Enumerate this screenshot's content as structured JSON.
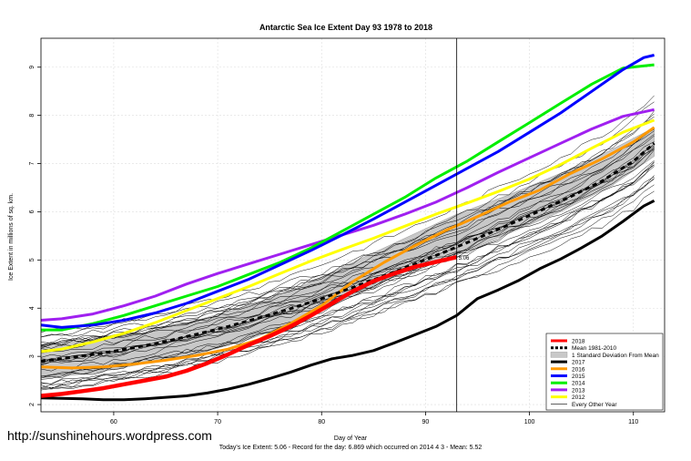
{
  "chart_data": {
    "type": "line",
    "title": "Antarctic Sea Ice Extent Day 93 1978 to 2018",
    "xlabel": "Day of Year",
    "ylabel": "Ice Extent in millions of sq. km.",
    "xlim": [
      53,
      113
    ],
    "ylim": [
      1.85,
      9.6
    ],
    "x_ticks": [
      60,
      70,
      80,
      90,
      100,
      110
    ],
    "y_ticks": [
      2,
      3,
      4,
      5,
      6,
      7,
      8,
      9
    ],
    "grid": true,
    "legend_position": "bottom-right",
    "current_day_marker": 93,
    "current_value_label": "5.06",
    "footnote": "Today's Ice Extent: 5.06  - Record for the day: 6.869 which occurred on 2014 4 3  - Mean: 5.52",
    "band": {
      "name": "1 Standard Deviation From Mean",
      "color": "#c8c8c8",
      "x": [
        53,
        58,
        63,
        68,
        73,
        78,
        83,
        88,
        93,
        98,
        103,
        108,
        112
      ],
      "upper": [
        3.25,
        3.35,
        3.5,
        3.75,
        4.05,
        4.45,
        4.95,
        5.45,
        5.95,
        6.35,
        6.8,
        7.3,
        7.75
      ],
      "lower": [
        2.55,
        2.65,
        2.85,
        3.05,
        3.35,
        3.75,
        4.25,
        4.75,
        5.1,
        5.55,
        6.0,
        6.55,
        7.15
      ]
    },
    "series": [
      {
        "name": "2018",
        "color": "#ff0000",
        "width": 4.5,
        "dash": "",
        "x": [
          53,
          55,
          57,
          59,
          61,
          63,
          65,
          67,
          69,
          71,
          73,
          75,
          77,
          79,
          81,
          83,
          85,
          87,
          89,
          91,
          93
        ],
        "y": [
          2.18,
          2.22,
          2.28,
          2.34,
          2.42,
          2.5,
          2.58,
          2.7,
          2.86,
          3.04,
          3.24,
          3.42,
          3.62,
          3.85,
          4.1,
          4.35,
          4.56,
          4.72,
          4.86,
          4.96,
          5.06
        ]
      },
      {
        "name": "Mean 1981-2010",
        "color": "#000000",
        "width": 3,
        "dash": "5,4",
        "x": [
          53,
          56,
          59,
          62,
          65,
          68,
          71,
          74,
          77,
          80,
          83,
          86,
          89,
          92,
          95,
          98,
          101,
          104,
          107,
          110,
          112
        ],
        "y": [
          2.9,
          2.98,
          3.07,
          3.18,
          3.31,
          3.46,
          3.62,
          3.8,
          3.99,
          4.2,
          4.43,
          4.67,
          4.92,
          5.18,
          5.45,
          5.73,
          6.02,
          6.32,
          6.64,
          7.05,
          7.42
        ]
      },
      {
        "name": "2017",
        "color": "#000000",
        "width": 3,
        "dash": "",
        "x": [
          53,
          55,
          57,
          59,
          61,
          63,
          65,
          67,
          69,
          71,
          73,
          75,
          77,
          79,
          81,
          83,
          85,
          87,
          89,
          91,
          93,
          95,
          97,
          99,
          101,
          103,
          105,
          107,
          109,
          111,
          112
        ],
        "y": [
          2.14,
          2.13,
          2.12,
          2.1,
          2.1,
          2.12,
          2.15,
          2.18,
          2.24,
          2.32,
          2.42,
          2.54,
          2.67,
          2.82,
          2.95,
          3.02,
          3.12,
          3.28,
          3.45,
          3.62,
          3.85,
          4.2,
          4.38,
          4.58,
          4.82,
          5.02,
          5.25,
          5.5,
          5.8,
          6.12,
          6.23
        ]
      },
      {
        "name": "2016",
        "color": "#ff9900",
        "width": 3,
        "dash": "",
        "x": [
          53,
          56,
          59,
          62,
          65,
          68,
          71,
          74,
          77,
          80,
          83,
          86,
          89,
          92,
          95,
          98,
          101,
          104,
          107,
          110,
          112
        ],
        "y": [
          2.78,
          2.76,
          2.78,
          2.84,
          2.92,
          3.02,
          3.15,
          3.35,
          3.68,
          4.05,
          4.55,
          4.95,
          5.3,
          5.62,
          5.9,
          6.2,
          6.45,
          6.8,
          7.1,
          7.45,
          7.75
        ]
      },
      {
        "name": "2015",
        "color": "#0000ff",
        "width": 3,
        "dash": "",
        "x": [
          53,
          55,
          58,
          61,
          64,
          67,
          70,
          73,
          76,
          79,
          82,
          85,
          88,
          91,
          94,
          97,
          100,
          103,
          106,
          109,
          111,
          112
        ],
        "y": [
          3.65,
          3.6,
          3.65,
          3.75,
          3.9,
          4.1,
          4.35,
          4.6,
          4.9,
          5.2,
          5.52,
          5.85,
          6.2,
          6.55,
          6.9,
          7.25,
          7.65,
          8.05,
          8.5,
          8.95,
          9.2,
          9.25
        ]
      },
      {
        "name": "2014",
        "color": "#00ee00",
        "width": 3,
        "dash": "",
        "x": [
          53,
          55,
          58,
          61,
          64,
          67,
          70,
          73,
          76,
          79,
          82,
          85,
          88,
          91,
          94,
          97,
          100,
          103,
          106,
          109,
          112
        ],
        "y": [
          3.55,
          3.55,
          3.68,
          3.85,
          4.05,
          4.25,
          4.45,
          4.7,
          4.95,
          5.25,
          5.6,
          5.95,
          6.3,
          6.7,
          7.05,
          7.45,
          7.85,
          8.25,
          8.65,
          8.98,
          9.05
        ]
      },
      {
        "name": "2013",
        "color": "#a020f0",
        "width": 3,
        "dash": "",
        "x": [
          53,
          55,
          58,
          61,
          64,
          67,
          70,
          73,
          76,
          79,
          82,
          85,
          88,
          91,
          94,
          97,
          100,
          103,
          106,
          109,
          112
        ],
        "y": [
          3.75,
          3.78,
          3.88,
          4.05,
          4.25,
          4.5,
          4.72,
          4.92,
          5.12,
          5.32,
          5.52,
          5.72,
          5.95,
          6.2,
          6.5,
          6.82,
          7.12,
          7.42,
          7.72,
          7.98,
          8.12
        ]
      },
      {
        "name": "2012",
        "color": "#ffff00",
        "width": 3,
        "dash": "",
        "x": [
          53,
          55,
          58,
          61,
          64,
          67,
          70,
          73,
          76,
          79,
          82,
          85,
          88,
          91,
          94,
          97,
          100,
          103,
          106,
          109,
          112
        ],
        "y": [
          3.1,
          3.15,
          3.3,
          3.48,
          3.7,
          3.95,
          4.2,
          4.45,
          4.72,
          4.98,
          5.22,
          5.45,
          5.7,
          5.95,
          6.18,
          6.42,
          6.68,
          6.98,
          7.32,
          7.65,
          7.9
        ]
      },
      {
        "name": "Every Other Year",
        "color": "#000000",
        "width": 0.7,
        "dash": "",
        "x": [],
        "y": []
      }
    ],
    "legend": [
      "2018",
      "Mean 1981-2010",
      "1 Standard Deviation From Mean",
      "2017",
      "2016",
      "2015",
      "2014",
      "2013",
      "2012",
      "Every Other Year"
    ]
  },
  "footer": {
    "url": "http://sunshinehours.wordpress.com"
  }
}
